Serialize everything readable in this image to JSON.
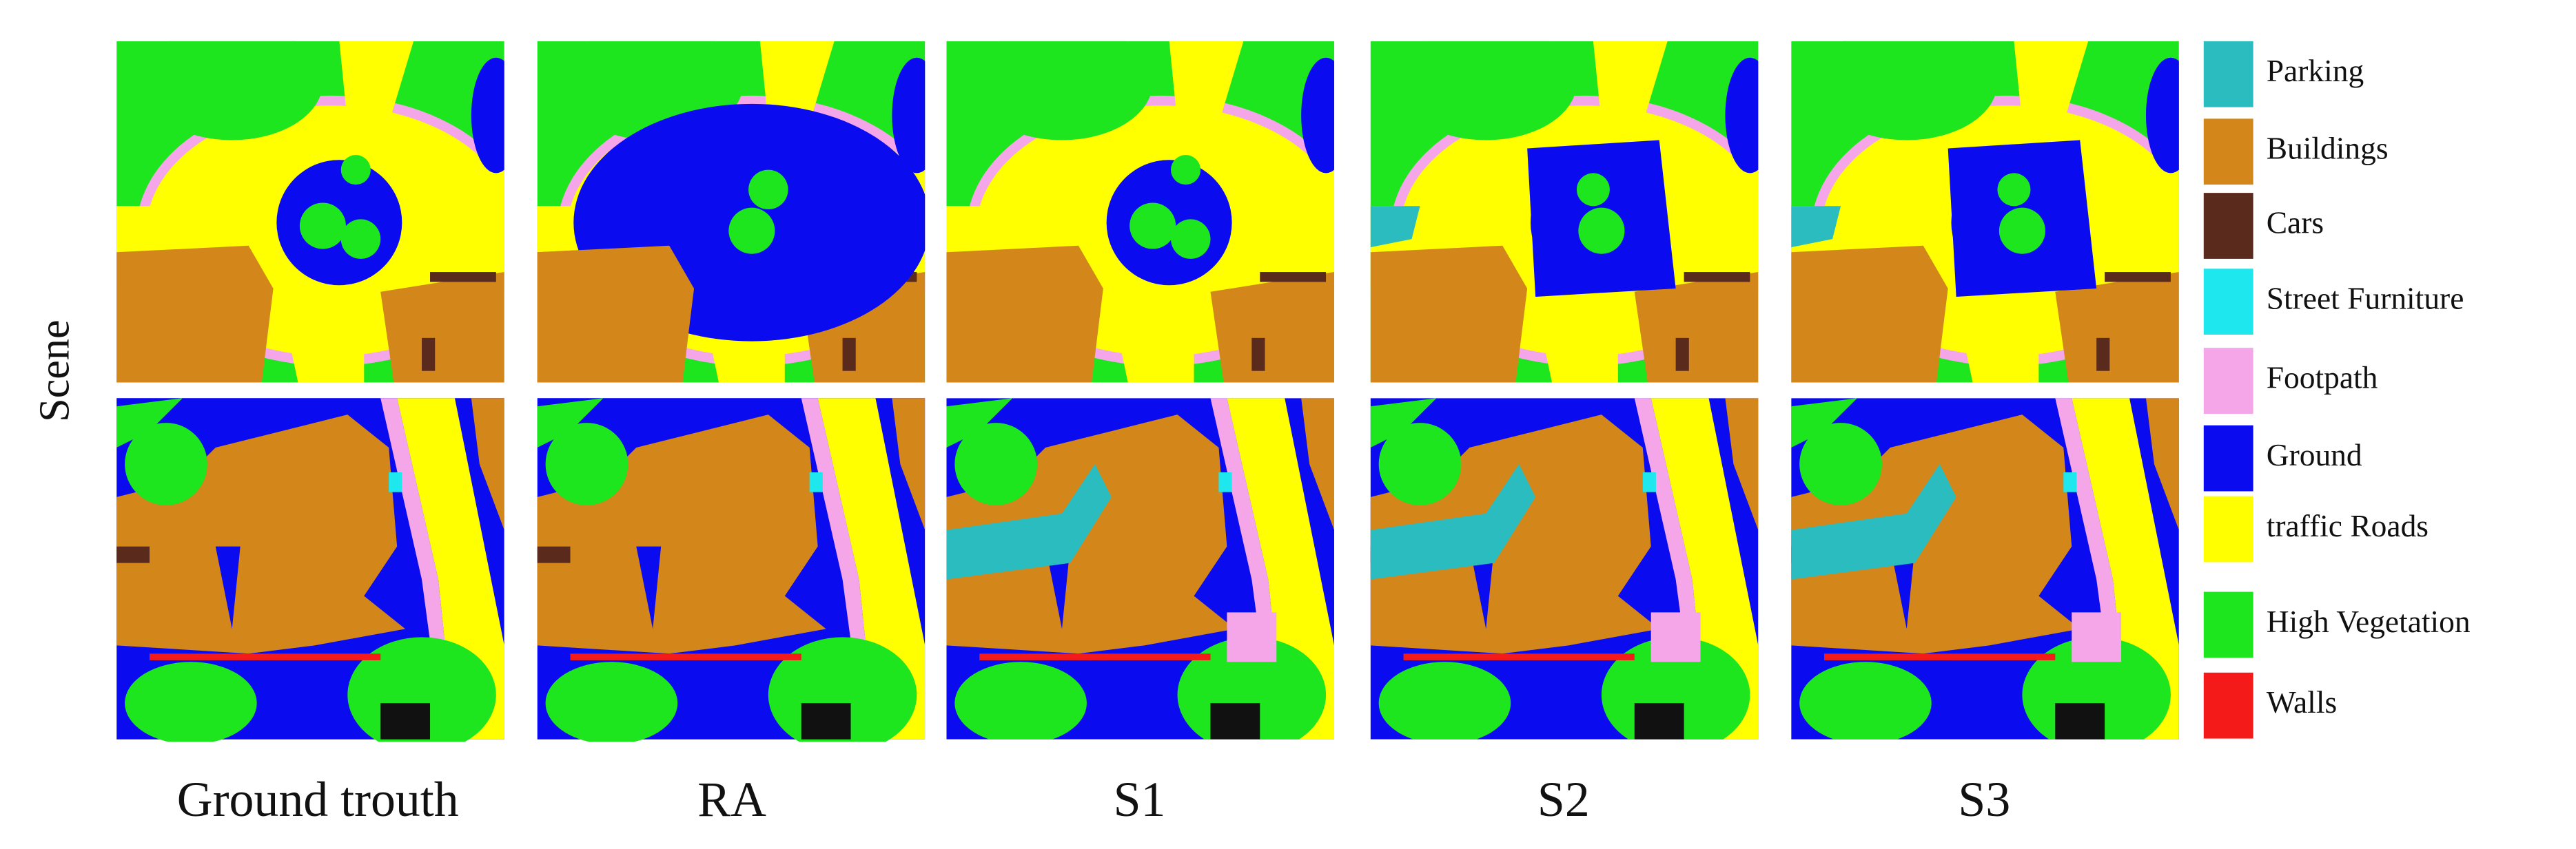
{
  "row_label": "Scene",
  "columns": [
    "Ground trouth",
    "RA",
    "S1",
    "S2",
    "S3"
  ],
  "legend": [
    {
      "label": "Parking",
      "color": "#2bbcc0"
    },
    {
      "label": "Buildings",
      "color": "#d3861a"
    },
    {
      "label": "Cars",
      "color": "#5a2a1c"
    },
    {
      "label": "Street Furniture",
      "color": "#1ee8ee"
    },
    {
      "label": "Footpath",
      "color": "#f5a6e8"
    },
    {
      "label": "Ground",
      "color": "#0b0bf0"
    },
    {
      "label": "traffic Roads",
      "color": "#ffff00"
    },
    {
      "label": "High Vegetation",
      "color": "#1ee61e"
    },
    {
      "label": "Walls",
      "color": "#f51a1a"
    }
  ]
}
